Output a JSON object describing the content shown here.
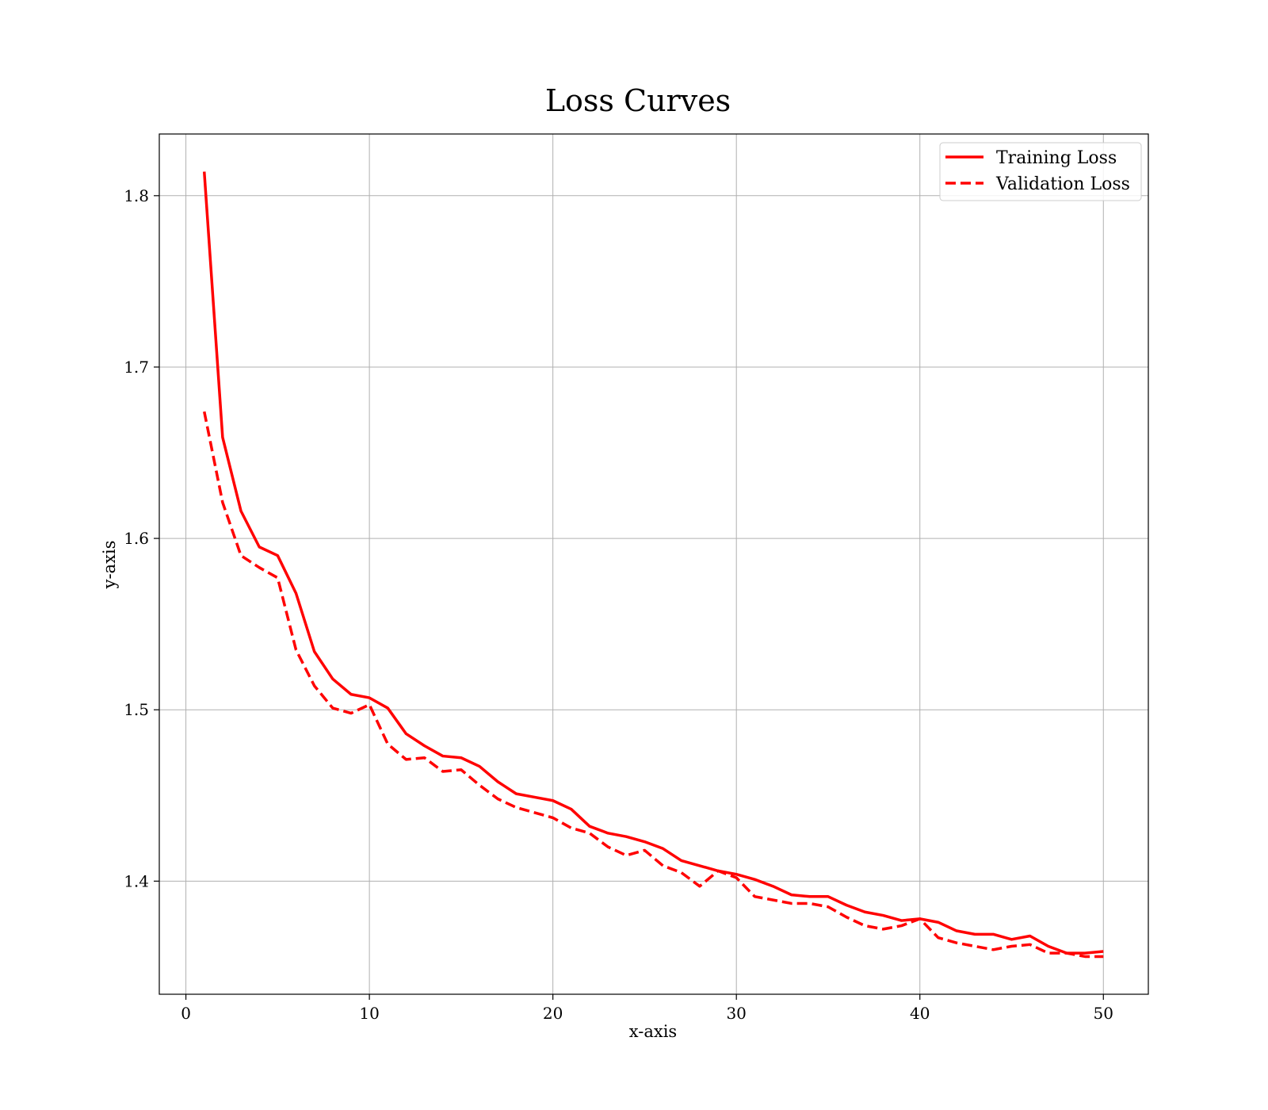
{
  "chart_data": {
    "type": "line",
    "title": "Loss Curves",
    "xlabel": "x-axis",
    "ylabel": "y-axis",
    "xlim": [
      -1.45,
      52.45
    ],
    "ylim": [
      1.334,
      1.836
    ],
    "xticks": [
      0,
      10,
      20,
      30,
      40,
      50
    ],
    "yticks": [
      1.4,
      1.5,
      1.6,
      1.7,
      1.8
    ],
    "grid": true,
    "legend_position": "top-right",
    "series_color": "#ff0000",
    "x": [
      1,
      2,
      3,
      4,
      5,
      6,
      7,
      8,
      9,
      10,
      11,
      12,
      13,
      14,
      15,
      16,
      17,
      18,
      19,
      20,
      21,
      22,
      23,
      24,
      25,
      26,
      27,
      28,
      29,
      30,
      31,
      32,
      33,
      34,
      35,
      36,
      37,
      38,
      39,
      40,
      41,
      42,
      43,
      44,
      45,
      46,
      47,
      48,
      49,
      50
    ],
    "series": [
      {
        "name": "Training Loss",
        "style": "solid",
        "values": [
          1.814,
          1.659,
          1.616,
          1.595,
          1.59,
          1.568,
          1.534,
          1.518,
          1.509,
          1.507,
          1.501,
          1.486,
          1.479,
          1.473,
          1.472,
          1.467,
          1.458,
          1.451,
          1.449,
          1.447,
          1.442,
          1.432,
          1.428,
          1.426,
          1.423,
          1.419,
          1.412,
          1.409,
          1.406,
          1.404,
          1.401,
          1.397,
          1.392,
          1.391,
          1.391,
          1.386,
          1.382,
          1.38,
          1.377,
          1.378,
          1.376,
          1.371,
          1.369,
          1.369,
          1.366,
          1.368,
          1.362,
          1.358,
          1.358,
          1.359
        ]
      },
      {
        "name": "Validation Loss",
        "style": "dashed",
        "values": [
          1.674,
          1.621,
          1.59,
          1.583,
          1.577,
          1.535,
          1.514,
          1.501,
          1.498,
          1.503,
          1.48,
          1.471,
          1.472,
          1.464,
          1.465,
          1.456,
          1.448,
          1.443,
          1.44,
          1.437,
          1.431,
          1.428,
          1.42,
          1.415,
          1.418,
          1.409,
          1.405,
          1.397,
          1.406,
          1.402,
          1.391,
          1.389,
          1.387,
          1.387,
          1.385,
          1.379,
          1.374,
          1.372,
          1.374,
          1.378,
          1.367,
          1.364,
          1.362,
          1.36,
          1.362,
          1.363,
          1.358,
          1.358,
          1.356,
          1.356
        ]
      }
    ]
  }
}
